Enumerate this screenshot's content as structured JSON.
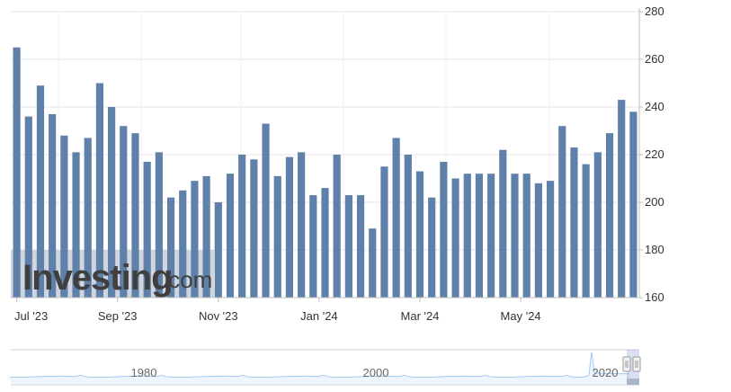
{
  "watermark": {
    "brand": "Investing",
    "suffix": ".com"
  },
  "colors": {
    "bar": "#5f80a9",
    "grid": "#e6e6e6",
    "axis": "#c0c0c0",
    "navigator_line": "#7cb5ec",
    "watermark_band": "#c8cfd9"
  },
  "navigator": {
    "labels": [
      "1980",
      "2000",
      "2020"
    ]
  },
  "chart_data": {
    "type": "bar",
    "title": "",
    "xlabel": "",
    "ylabel": "",
    "ylim": [
      160,
      280
    ],
    "yticks": [
      160,
      180,
      200,
      220,
      240,
      260,
      280
    ],
    "y_axis_side": "right",
    "grid": true,
    "x_ticks": [
      {
        "label": "Jul '23",
        "index": 0
      },
      {
        "label": "Sep '23",
        "index": 8.5
      },
      {
        "label": "Nov '23",
        "index": 17
      },
      {
        "label": "Jan '24",
        "index": 25.5
      },
      {
        "label": "Mar '24",
        "index": 34
      },
      {
        "label": "May '24",
        "index": 42.5
      }
    ],
    "values": [
      265,
      236,
      249,
      237,
      228,
      221,
      227,
      250,
      240,
      232,
      229,
      217,
      221,
      202,
      205,
      209,
      211,
      200,
      212,
      220,
      218,
      233,
      211,
      219,
      221,
      203,
      206,
      220,
      203,
      203,
      189,
      215,
      227,
      220,
      213,
      202,
      217,
      210,
      212,
      212,
      212,
      222,
      212,
      212,
      208,
      209,
      232,
      223,
      216,
      221,
      229,
      243,
      238
    ]
  }
}
